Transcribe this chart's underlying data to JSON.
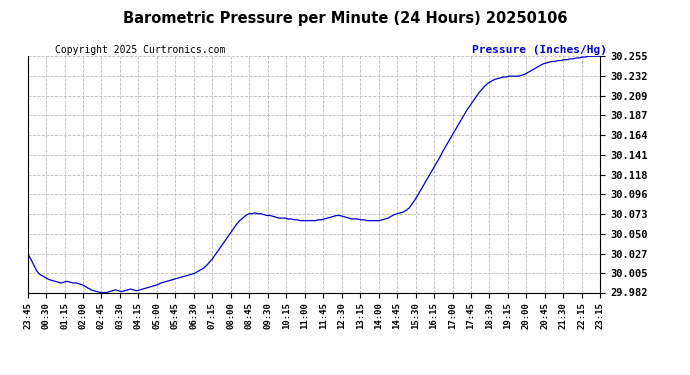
{
  "title": "Barometric Pressure per Minute (24 Hours) 20250106",
  "copyright_text": "Copyright 2025 Curtronics.com",
  "ylabel": "Pressure (Inches/Hg)",
  "ylabel_color": "#0000CC",
  "line_color": "#0000CC",
  "background_color": "#ffffff",
  "grid_color": "#aaaaaa",
  "title_color": "#000000",
  "ylim_min": 29.982,
  "ylim_max": 30.255,
  "yticks": [
    29.982,
    30.005,
    30.027,
    30.05,
    30.073,
    30.096,
    30.118,
    30.141,
    30.164,
    30.187,
    30.209,
    30.232,
    30.255
  ],
  "x_labels": [
    "23:45",
    "00:30",
    "01:15",
    "02:00",
    "02:45",
    "03:30",
    "04:15",
    "05:00",
    "05:45",
    "06:30",
    "07:15",
    "08:00",
    "08:45",
    "09:30",
    "10:15",
    "11:00",
    "11:45",
    "12:30",
    "13:15",
    "14:00",
    "14:45",
    "15:30",
    "16:15",
    "17:00",
    "17:45",
    "18:30",
    "19:15",
    "20:00",
    "20:45",
    "21:30",
    "22:15",
    "23:15"
  ],
  "pressure_data": [
    30.027,
    30.021,
    30.014,
    30.007,
    30.003,
    30.001,
    29.999,
    29.997,
    29.996,
    29.995,
    29.994,
    29.993,
    29.994,
    29.995,
    29.994,
    29.993,
    29.993,
    29.992,
    29.991,
    29.989,
    29.987,
    29.985,
    29.984,
    29.983,
    29.982,
    29.982,
    29.982,
    29.983,
    29.984,
    29.985,
    29.984,
    29.983,
    29.984,
    29.985,
    29.986,
    29.985,
    29.984,
    29.985,
    29.986,
    29.987,
    29.988,
    29.989,
    29.99,
    29.991,
    29.993,
    29.994,
    29.995,
    29.996,
    29.997,
    29.998,
    29.999,
    30.0,
    30.001,
    30.002,
    30.003,
    30.004,
    30.006,
    30.008,
    30.01,
    30.013,
    30.017,
    30.021,
    30.026,
    30.031,
    30.036,
    30.041,
    30.046,
    30.051,
    30.056,
    30.061,
    30.065,
    30.068,
    30.071,
    30.073,
    30.073,
    30.074,
    30.073,
    30.073,
    30.072,
    30.071,
    30.071,
    30.07,
    30.069,
    30.068,
    30.068,
    30.068,
    30.067,
    30.067,
    30.066,
    30.066,
    30.065,
    30.065,
    30.065,
    30.065,
    30.065,
    30.065,
    30.066,
    30.066,
    30.067,
    30.068,
    30.069,
    30.07,
    30.071,
    30.071,
    30.07,
    30.069,
    30.068,
    30.067,
    30.067,
    30.067,
    30.066,
    30.066,
    30.065,
    30.065,
    30.065,
    30.065,
    30.065,
    30.066,
    30.067,
    30.068,
    30.07,
    30.072,
    30.073,
    30.074,
    30.075,
    30.077,
    30.08,
    30.085,
    30.09,
    30.096,
    30.102,
    30.108,
    30.114,
    30.12,
    30.126,
    30.132,
    30.138,
    30.145,
    30.151,
    30.157,
    30.163,
    30.169,
    30.175,
    30.181,
    30.187,
    30.193,
    30.198,
    30.203,
    30.208,
    30.213,
    30.217,
    30.221,
    30.224,
    30.226,
    30.228,
    30.229,
    30.23,
    30.231,
    30.231,
    30.232,
    30.232,
    30.232,
    30.232,
    30.233,
    30.234,
    30.236,
    30.238,
    30.24,
    30.242,
    30.244,
    30.246,
    30.247,
    30.248,
    30.249,
    30.249,
    30.25,
    30.25,
    30.251,
    30.251,
    30.252,
    30.252,
    30.253,
    30.253,
    30.254,
    30.254,
    30.255,
    30.255,
    30.255,
    30.255,
    30.255
  ]
}
